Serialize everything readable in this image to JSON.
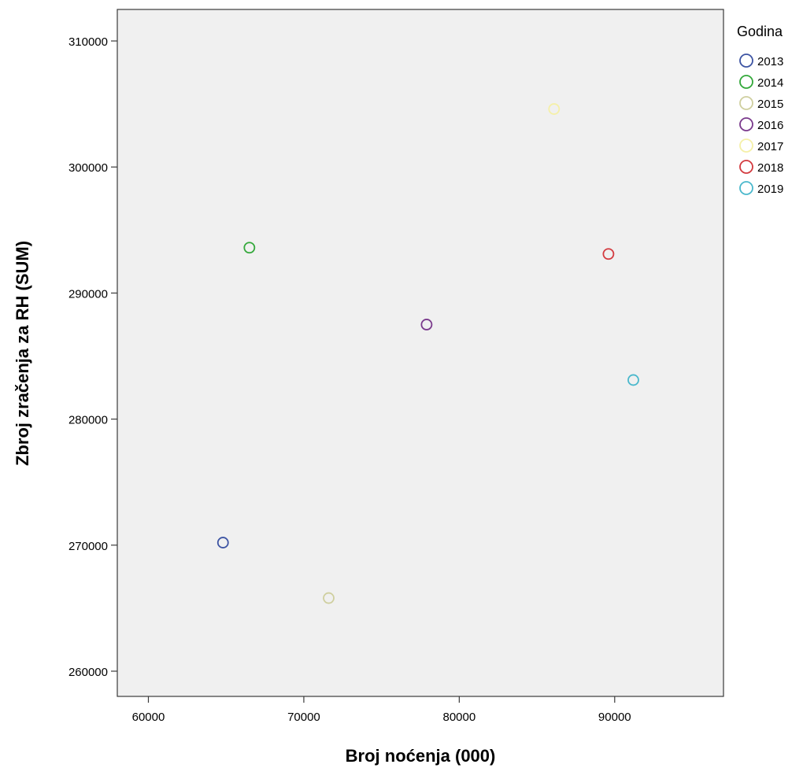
{
  "chart_data": {
    "type": "scatter",
    "title": "",
    "xlabel": "Broj noćenja (000)",
    "ylabel": "Zbroj zračenja za RH (SUM)",
    "xlim": [
      58000,
      97000
    ],
    "ylim": [
      258000,
      312500
    ],
    "xticks": [
      60000,
      70000,
      80000,
      90000
    ],
    "yticks": [
      260000,
      270000,
      280000,
      290000,
      300000,
      310000
    ],
    "xtick_labels": [
      "60000",
      "70000",
      "80000",
      "90000"
    ],
    "ytick_labels": [
      "260000",
      "270000",
      "280000",
      "290000",
      "300000",
      "310000"
    ],
    "grid": false,
    "background": "#f0f0f0",
    "legend": {
      "title": "Godina",
      "position": "right"
    },
    "series": [
      {
        "name": "2013",
        "color": "#3d54a3",
        "points": [
          {
            "x": 64800,
            "y": 270200
          }
        ]
      },
      {
        "name": "2014",
        "color": "#33a83a",
        "points": [
          {
            "x": 66500,
            "y": 293600
          }
        ]
      },
      {
        "name": "2015",
        "color": "#cfcf9f",
        "points": [
          {
            "x": 71600,
            "y": 265800
          }
        ]
      },
      {
        "name": "2016",
        "color": "#7a3a8c",
        "points": [
          {
            "x": 77900,
            "y": 287500
          }
        ]
      },
      {
        "name": "2017",
        "color": "#f5f0a8",
        "points": [
          {
            "x": 86100,
            "y": 304600
          }
        ]
      },
      {
        "name": "2018",
        "color": "#d33a3f",
        "points": [
          {
            "x": 89600,
            "y": 293100
          }
        ]
      },
      {
        "name": "2019",
        "color": "#4ab8cc",
        "points": [
          {
            "x": 91200,
            "y": 283100
          }
        ]
      }
    ]
  }
}
